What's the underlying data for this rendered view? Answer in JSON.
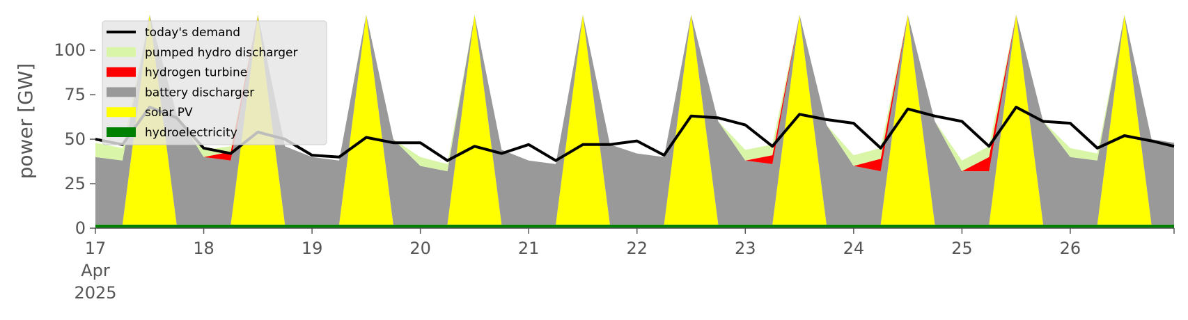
{
  "chart_data": {
    "type": "area",
    "title": "",
    "xlabel": "",
    "ylabel": "power [GW]",
    "ylim": [
      0,
      120
    ],
    "xlim": [
      "2025-04-17 00:00",
      "2025-04-26 23:00"
    ],
    "yticks": [
      0,
      25,
      50,
      75,
      100
    ],
    "xtick_labels": [
      {
        "date": "2025-04-17",
        "lines": [
          "17",
          "Apr",
          "2025"
        ]
      },
      {
        "date": "2025-04-18",
        "lines": [
          "18"
        ]
      },
      {
        "date": "2025-04-19",
        "lines": [
          "19"
        ]
      },
      {
        "date": "2025-04-20",
        "lines": [
          "20"
        ]
      },
      {
        "date": "2025-04-21",
        "lines": [
          "21"
        ]
      },
      {
        "date": "2025-04-22",
        "lines": [
          "22"
        ]
      },
      {
        "date": "2025-04-23",
        "lines": [
          "23"
        ]
      },
      {
        "date": "2025-04-24",
        "lines": [
          "24"
        ]
      },
      {
        "date": "2025-04-25",
        "lines": [
          "25"
        ]
      },
      {
        "date": "2025-04-26",
        "lines": [
          "26"
        ]
      }
    ],
    "grid": false,
    "legend_position": "top-left",
    "x": [
      "2025-04-17 00:00",
      "2025-04-17 06:00",
      "2025-04-17 12:00",
      "2025-04-17 18:00",
      "2025-04-18 00:00",
      "2025-04-18 06:00",
      "2025-04-18 12:00",
      "2025-04-18 18:00",
      "2025-04-19 00:00",
      "2025-04-19 06:00",
      "2025-04-19 12:00",
      "2025-04-19 18:00",
      "2025-04-20 00:00",
      "2025-04-20 06:00",
      "2025-04-20 12:00",
      "2025-04-20 18:00",
      "2025-04-21 00:00",
      "2025-04-21 06:00",
      "2025-04-21 12:00",
      "2025-04-21 18:00",
      "2025-04-22 00:00",
      "2025-04-22 06:00",
      "2025-04-22 12:00",
      "2025-04-22 18:00",
      "2025-04-23 00:00",
      "2025-04-23 06:00",
      "2025-04-23 12:00",
      "2025-04-23 18:00",
      "2025-04-24 00:00",
      "2025-04-24 06:00",
      "2025-04-24 12:00",
      "2025-04-24 18:00",
      "2025-04-25 00:00",
      "2025-04-25 06:00",
      "2025-04-25 12:00",
      "2025-04-25 18:00",
      "2025-04-26 00:00",
      "2025-04-26 06:00",
      "2025-04-26 12:00",
      "2025-04-26 18:00",
      "2025-04-26 23:00"
    ],
    "series": [
      {
        "name": "hydroelectricity",
        "color": "#008000",
        "kind": "area",
        "values": [
          2,
          2,
          2,
          2,
          2,
          2,
          2,
          2,
          2,
          2,
          2,
          2,
          2,
          2,
          2,
          2,
          2,
          2,
          2,
          2,
          2,
          2,
          2,
          2,
          2,
          2,
          2,
          2,
          2,
          2,
          2,
          2,
          2,
          2,
          2,
          2,
          2,
          2,
          2,
          2,
          2
        ]
      },
      {
        "name": "solar PV",
        "color": "#ffff00",
        "kind": "area",
        "values": [
          0,
          0,
          120,
          0,
          0,
          0,
          120,
          0,
          0,
          0,
          120,
          0,
          0,
          0,
          120,
          0,
          0,
          0,
          120,
          0,
          0,
          0,
          120,
          0,
          0,
          0,
          120,
          0,
          0,
          0,
          120,
          0,
          0,
          0,
          120,
          0,
          0,
          0,
          120,
          0,
          0
        ]
      },
      {
        "name": "battery discharger",
        "color": "#999999",
        "kind": "area",
        "values": [
          38,
          36,
          0,
          62,
          38,
          36,
          0,
          44,
          38,
          36,
          0,
          48,
          33,
          30,
          0,
          42,
          36,
          34,
          0,
          45,
          40,
          38,
          0,
          58,
          36,
          34,
          0,
          56,
          33,
          30,
          0,
          58,
          30,
          30,
          0,
          58,
          38,
          36,
          0,
          48,
          46
        ]
      },
      {
        "name": "hydrogen turbine",
        "color": "#ff0000",
        "kind": "area",
        "values": [
          0,
          0,
          0,
          0,
          0,
          5,
          0,
          0,
          0,
          0,
          0,
          0,
          0,
          0,
          0,
          0,
          0,
          0,
          0,
          0,
          0,
          0,
          0,
          0,
          0,
          5,
          0,
          0,
          0,
          7,
          0,
          0,
          0,
          8,
          0,
          0,
          0,
          0,
          0,
          0,
          0
        ]
      },
      {
        "name": "pumped hydro discharger",
        "color": "#d9f5a8",
        "kind": "area",
        "values": [
          8,
          7,
          0,
          0,
          4,
          3,
          0,
          0,
          0,
          0,
          0,
          0,
          5,
          4,
          0,
          0,
          0,
          0,
          0,
          0,
          0,
          0,
          0,
          0,
          6,
          6,
          0,
          0,
          6,
          6,
          0,
          0,
          6,
          6,
          0,
          0,
          5,
          4,
          0,
          0,
          0
        ]
      },
      {
        "name": "today's demand",
        "color": "#000000",
        "kind": "line",
        "values": [
          50,
          47,
          68,
          62,
          45,
          42,
          54,
          50,
          41,
          40,
          51,
          48,
          48,
          38,
          46,
          42,
          47,
          38,
          47,
          47,
          49,
          41,
          63,
          62,
          58,
          46,
          64,
          61,
          59,
          45,
          67,
          63,
          60,
          46,
          68,
          60,
          59,
          45,
          52,
          49,
          46
        ]
      }
    ]
  }
}
